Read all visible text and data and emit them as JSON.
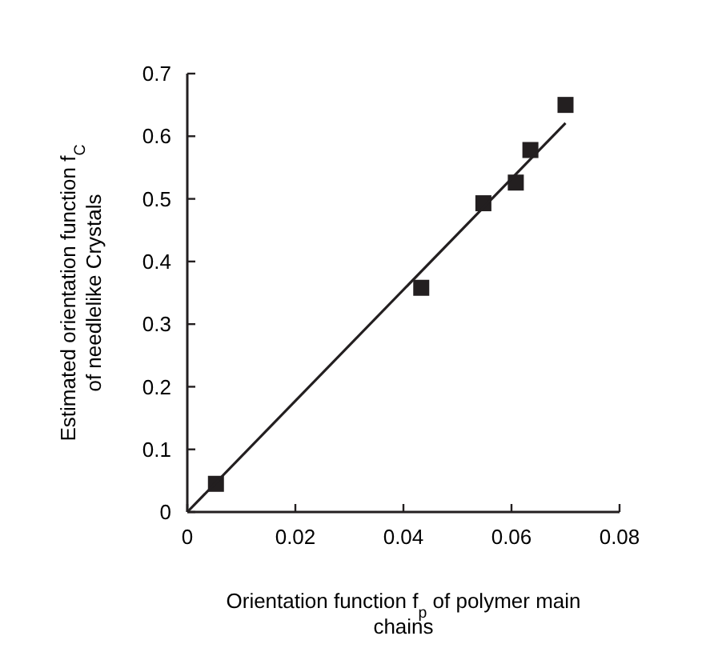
{
  "chart_data": {
    "type": "scatter",
    "xlabel": "Orientation function f$_{p}$ of polymer main chains",
    "ylabel": "Estimated orientation function f$_{C}$ of needlelike Crystals",
    "xlim": [
      0,
      0.08
    ],
    "xticks": [
      0,
      0.02,
      0.04,
      0.06,
      0.08
    ],
    "ylim": [
      0,
      0.7
    ],
    "yticks": [
      0,
      0.1,
      0.2,
      0.3,
      0.4,
      0.5,
      0.6,
      0.7
    ],
    "grid": false,
    "series": [
      {
        "color": "#231f20",
        "marker": "square",
        "x": [
          0.0053,
          0.0433,
          0.0548,
          0.0608,
          0.0635,
          0.07
        ],
        "values": [
          0.045,
          0.358,
          0.493,
          0.526,
          0.578,
          0.65
        ]
      },
      {
        "type": "line",
        "color": "#231f20",
        "marker": "none",
        "line_style": "solid",
        "x": [
          0,
          0.07
        ],
        "values": [
          0,
          0.621
        ]
      }
    ]
  }
}
